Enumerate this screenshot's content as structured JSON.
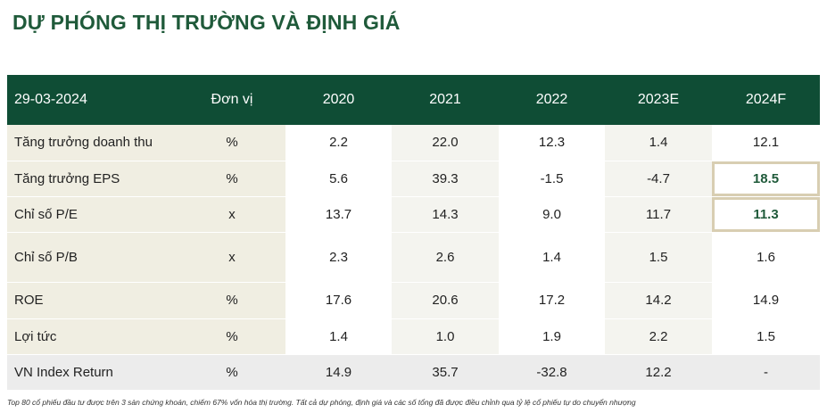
{
  "title": "DỰ PHÓNG THỊ TRƯỜNG VÀ ĐỊNH GIÁ",
  "table": {
    "headers": [
      "29-03-2024",
      "Đơn vị",
      "2020",
      "2021",
      "2022",
      "2023E",
      "2024F"
    ],
    "rows": [
      {
        "label": "Tăng trưởng doanh thu",
        "unit": "%",
        "values": [
          "2.2",
          "22.0",
          "12.3",
          "1.4",
          "12.1"
        ]
      },
      {
        "label": "Tăng trưởng EPS",
        "unit": "%",
        "values": [
          "5.6",
          "39.3",
          "-1.5",
          "-4.7",
          "18.5"
        ]
      },
      {
        "label": "Chỉ số P/E",
        "unit": "x",
        "values": [
          "13.7",
          "14.3",
          "9.0",
          "11.7",
          "11.3"
        ]
      },
      {
        "label": "Chỉ số P/B",
        "unit": "x",
        "values": [
          "2.3",
          "2.6",
          "1.4",
          "1.5",
          "1.6"
        ]
      },
      {
        "label": "ROE",
        "unit": "%",
        "values": [
          "17.6",
          "20.6",
          "17.2",
          "14.2",
          "14.9"
        ]
      },
      {
        "label": "Lợi tức",
        "unit": "%",
        "values": [
          "1.4",
          "1.0",
          "1.9",
          "2.2",
          "1.5"
        ]
      },
      {
        "label": "VN Index Return",
        "unit": "%",
        "values": [
          "14.9",
          "35.7",
          "-32.8",
          "12.2",
          "-"
        ]
      }
    ]
  },
  "footnote": "Top 80 cổ phiếu đầu tư được trên 3 sàn chứng khoán, chiếm 67% vốn hóa thị trường. Tất cả dự phóng, định giá và các số tổng đã được điều chỉnh qua tỷ lệ cổ phiếu tự do chuyển nhượng",
  "colors": {
    "header_bg": "#0f4d35",
    "title": "#1f5a3a",
    "highlight_border": "#d8ceb2"
  }
}
